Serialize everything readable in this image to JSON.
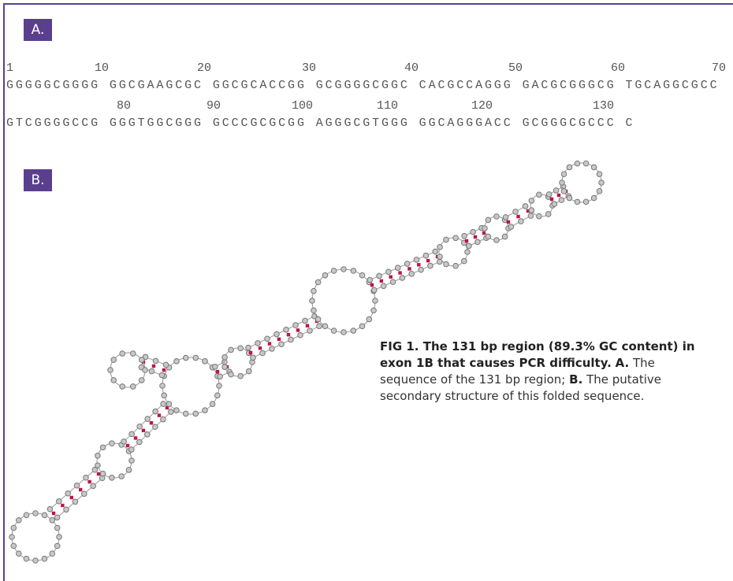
{
  "panel_a": {
    "label": "A.",
    "ruler_1": [
      1,
      10,
      20,
      30,
      40,
      50,
      60,
      70
    ],
    "sequence_1": "GGGGGCGGGG GGCGAAGCGC GGCGCACCGG GCGGGGCGGC CACGCCAGGG GACGCGGGCG TGCAGGCGCC",
    "ruler_2": [
      80,
      90,
      100,
      110,
      120,
      130
    ],
    "sequence_2": "GTCGGGGCCG GGGTGGCGGG GCCCGCGCGG AGGGCGTGGG GGCAGGGACC GCGGGCGCCC C"
  },
  "panel_b": {
    "label": "B."
  },
  "caption": {
    "lead": "FIG 1. The 131 bp region (89.3% GC content) in exon 1B that causes PCR difficulty.",
    "a_label": "A.",
    "a_text": "The sequence of the 131 bp region;",
    "b_label": "B.",
    "b_text": "The putative secondary structure of this folded sequence."
  }
}
